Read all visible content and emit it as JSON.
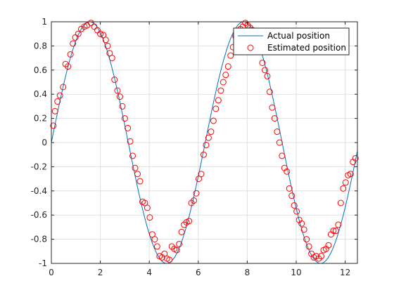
{
  "chart_data": {
    "type": "scatter",
    "title": "",
    "xlabel": "",
    "ylabel": "",
    "xlim": [
      0,
      12.5
    ],
    "ylim": [
      -1,
      1
    ],
    "x_ticks": [
      0,
      2,
      4,
      6,
      8,
      10,
      12
    ],
    "x_tick_labels": [
      "0",
      "2",
      "4",
      "6",
      "8",
      "10",
      "12"
    ],
    "y_ticks": [
      -1,
      -0.8,
      -0.6,
      -0.4,
      -0.2,
      0,
      0.2,
      0.4,
      0.6,
      0.8,
      1
    ],
    "y_tick_labels": [
      "-1",
      "-0.8",
      "-0.6",
      "-0.4",
      "-0.2",
      "0",
      "0.2",
      "0.4",
      "0.6",
      "0.8",
      "1"
    ],
    "grid": true,
    "legend_position": "top-right",
    "series": [
      {
        "name": "Actual position",
        "kind": "line",
        "color": "#0072bd",
        "function": "sin(x)",
        "x_range": [
          0,
          12.5
        ]
      },
      {
        "name": "Estimated position",
        "kind": "markers",
        "marker": "circle-open",
        "color": "#ff0000",
        "x": [
          0.08,
          0.15,
          0.25,
          0.35,
          0.48,
          0.58,
          0.68,
          0.78,
          0.88,
          0.98,
          1.1,
          1.22,
          1.35,
          1.45,
          1.62,
          1.75,
          1.88,
          2.0,
          2.12,
          2.22,
          2.3,
          2.38,
          2.48,
          2.58,
          2.7,
          2.8,
          2.9,
          3.0,
          3.12,
          3.22,
          3.32,
          3.42,
          3.52,
          3.62,
          3.72,
          3.82,
          3.92,
          4.02,
          4.12,
          4.22,
          4.32,
          4.42,
          4.52,
          4.62,
          4.72,
          4.82,
          4.92,
          5.02,
          5.12,
          5.22,
          5.32,
          5.42,
          5.52,
          5.62,
          5.72,
          5.82,
          5.92,
          6.02,
          6.12,
          6.22,
          6.32,
          6.42,
          6.52,
          6.62,
          6.72,
          6.82,
          6.92,
          7.02,
          7.12,
          7.22,
          7.32,
          7.42,
          7.52,
          7.62,
          7.72,
          7.82,
          7.92,
          8.02,
          8.12,
          8.22,
          8.32,
          8.42,
          8.52,
          8.62,
          8.72,
          8.82,
          8.92,
          9.02,
          9.12,
          9.22,
          9.32,
          9.42,
          9.52,
          9.62,
          9.72,
          9.82,
          9.92,
          10.02,
          10.12,
          10.22,
          10.32,
          10.42,
          10.52,
          10.62,
          10.72,
          10.82,
          10.92,
          11.02,
          11.12,
          11.22,
          11.32,
          11.42,
          11.52,
          11.62,
          11.72,
          11.82,
          11.92,
          12.02,
          12.12,
          12.22,
          12.32,
          12.42
        ],
        "y": [
          0.14,
          0.26,
          0.34,
          0.39,
          0.46,
          0.65,
          0.63,
          0.73,
          0.82,
          0.87,
          0.9,
          0.94,
          0.96,
          0.97,
          0.99,
          0.96,
          0.93,
          0.9,
          0.89,
          0.85,
          0.8,
          0.74,
          0.7,
          0.52,
          0.43,
          0.38,
          0.3,
          0.2,
          0.12,
          0.01,
          -0.11,
          -0.21,
          -0.26,
          -0.32,
          -0.49,
          -0.5,
          -0.54,
          -0.62,
          -0.76,
          -0.8,
          -0.86,
          -0.94,
          -0.95,
          -0.92,
          -0.96,
          -0.97,
          -0.86,
          -0.88,
          -0.89,
          -0.84,
          -0.74,
          -0.68,
          -0.66,
          -0.65,
          -0.5,
          -0.48,
          -0.42,
          -0.3,
          -0.26,
          -0.1,
          -0.02,
          0.04,
          0.09,
          0.18,
          0.28,
          0.35,
          0.43,
          0.5,
          0.56,
          0.63,
          0.72,
          0.79,
          0.88,
          0.92,
          0.94,
          0.96,
          0.99,
          0.97,
          0.95,
          0.93,
          0.84,
          0.79,
          0.75,
          0.66,
          0.6,
          0.55,
          0.42,
          0.29,
          0.2,
          0.09,
          0.0,
          -0.11,
          -0.21,
          -0.24,
          -0.38,
          -0.44,
          -0.52,
          -0.57,
          -0.64,
          -0.67,
          -0.72,
          -0.8,
          -0.86,
          -0.92,
          -0.95,
          -0.94,
          -0.96,
          -0.94,
          -0.89,
          -0.88,
          -0.85,
          -0.76,
          -0.73,
          -0.73,
          -0.68,
          -0.5,
          -0.38,
          -0.33,
          -0.27,
          -0.26,
          -0.16,
          -0.13
        ]
      }
    ]
  }
}
